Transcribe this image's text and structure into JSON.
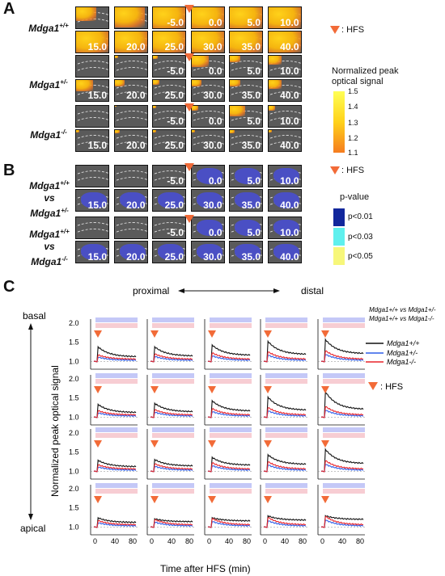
{
  "panels": {
    "A": {
      "letter": "A",
      "rows": [
        {
          "genotype": "Mdga1",
          "sup": "+/+"
        },
        {
          "genotype": "Mdga1",
          "sup": "+/-"
        },
        {
          "genotype": "Mdga1",
          "sup": "-/-"
        }
      ],
      "tile_labels": [
        "",
        "",
        "-5.0",
        "0.0",
        "5.0",
        "10.0",
        "15.0",
        "20.0",
        "25.0",
        "30.0",
        "35.0",
        "40.0"
      ],
      "hfs_legend": ": HFS",
      "colorbar": {
        "title_line1": "Normalized peak",
        "title_line2": "optical signal",
        "ticks": [
          "1.5",
          "1.4",
          "1.3",
          "1.2",
          "1.1"
        ],
        "color_top": "#ffff55",
        "color_bottom": "#f57c1f"
      }
    },
    "B": {
      "letter": "B",
      "rows": [
        {
          "line1": "Mdga1",
          "sup1": "+/+",
          "line2": "vs",
          "line3": "Mdga1",
          "sup3": "+/-"
        },
        {
          "line1": "Mdga1",
          "sup1": "+/+",
          "line2": "vs",
          "line3": "Mdga1",
          "sup3": "-/-"
        }
      ],
      "row2_labels": [
        "20.0",
        "25.0",
        "30.0",
        "35.0",
        "40.0"
      ],
      "hfs_legend": ": HFS",
      "pvalue_title": "p-value",
      "pvalue_items": [
        {
          "label": "p<0.01",
          "color": "#12279c"
        },
        {
          "label": "p<0.03",
          "color": "#5ff0ee"
        },
        {
          "label": "p<0.05",
          "color": "#f7f77a"
        }
      ]
    },
    "C": {
      "letter": "C",
      "proximal": "proximal",
      "distal": "distal",
      "basal": "basal",
      "apical": "apical",
      "ylabel": "Normalized peak optical signal",
      "xlabel": "Time after HFS (min)",
      "x_ticks": [
        "0",
        "40",
        "80"
      ],
      "y_ticks": [
        "2.0",
        "1.5",
        "1.0"
      ],
      "comparison_legend": [
        {
          "label": "Mdga1+/+ vs Mdga1+/-",
          "color": "#9aa2f5"
        },
        {
          "label": "Mdga1+/+ vs Mdga1-/-",
          "color": "#f5a3ad"
        }
      ],
      "series_legend": [
        {
          "label": "Mdga1+/+",
          "color": "#111111"
        },
        {
          "label": "Mdga1+/-",
          "color": "#2f5ee8"
        },
        {
          "label": "Mdga1-/-",
          "color": "#e8232a"
        }
      ],
      "hfs_legend": ": HFS"
    }
  },
  "colors": {
    "hfs": "#f26b38",
    "tile_bg": "#5a5a5a",
    "sig_blue": "#4a4fc4"
  }
}
